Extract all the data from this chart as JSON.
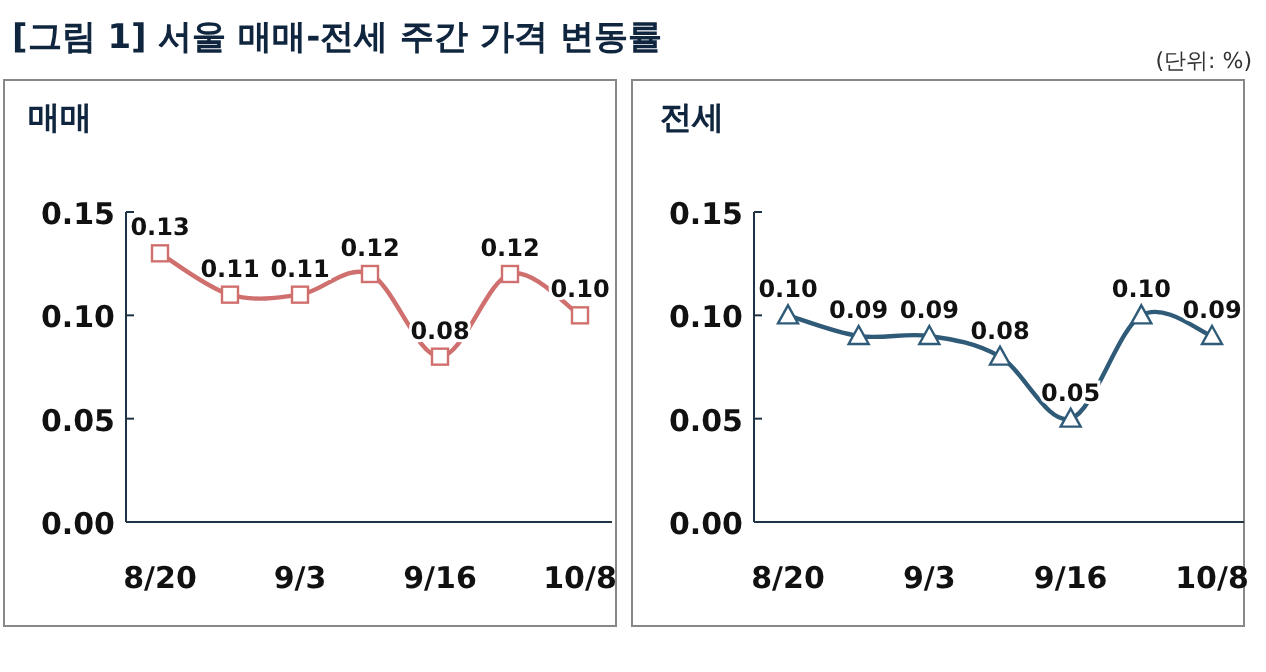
{
  "chart_data": [
    {
      "type": "line",
      "title": "매매",
      "annotations": [
        "[그림 1] 서울 매매-전세 주간 가격 변동률"
      ],
      "categories": [
        "8/20",
        null,
        "9/3",
        null,
        "9/16",
        null,
        "10/8"
      ],
      "series": [
        {
          "color": "#d0706e",
          "values": [
            0.13,
            0.11,
            0.11,
            0.12,
            0.08,
            0.12,
            0.1
          ],
          "value_labels": [
            "0.13",
            "0.11",
            "0.11",
            "0.12",
            "0.08",
            "0.12",
            "0.10"
          ]
        }
      ],
      "ylim": [
        0,
        0.15
      ],
      "yticks": [
        {
          "value": 0,
          "label": "0.00"
        },
        {
          "value": 0.05,
          "label": "0.05"
        },
        {
          "value": 0.1,
          "label": "0.10"
        },
        {
          "value": 0.15,
          "label": "0.15"
        }
      ],
      "marker": "square",
      "grid": false
    },
    {
      "type": "line",
      "title": "전세",
      "annotations": [
        "(단위: %)"
      ],
      "categories": [
        "8/20",
        null,
        "9/3",
        null,
        "9/16",
        null,
        "10/8"
      ],
      "series": [
        {
          "color": "#2f5b78",
          "values": [
            0.1,
            0.09,
            0.09,
            0.08,
            0.05,
            0.1,
            0.09
          ],
          "value_labels": [
            "0.10",
            "0.09",
            "0.09",
            "0.08",
            "0.05",
            "0.10",
            "0.09"
          ]
        }
      ],
      "ylim": [
        0,
        0.15
      ],
      "yticks": [
        {
          "value": 0,
          "label": "0.00"
        },
        {
          "value": 0.05,
          "label": "0.05"
        },
        {
          "value": 0.1,
          "label": "0.10"
        },
        {
          "value": 0.15,
          "label": "0.15"
        }
      ],
      "marker": "triangle",
      "grid": false
    }
  ]
}
